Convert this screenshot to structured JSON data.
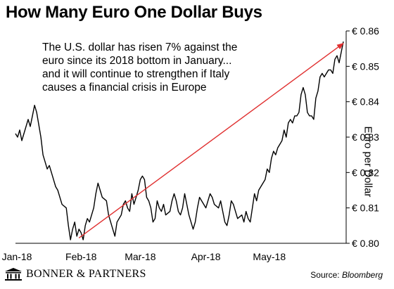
{
  "title": "How Many Euro One Dollar Buys",
  "annotation": [
    "The U.S. dollar has risen 7% against the",
    "euro since its 2018 bottom in January...",
    "and it will continue to strengthen if Italy",
    "causes a financial crisis in Europe"
  ],
  "footer": {
    "brand": "BONNER & PARTNERS",
    "source_label": "Source:",
    "source_name": "Bloomberg"
  },
  "colors": {
    "line": "#000000",
    "arrow": "#e03030",
    "axis": "#000000"
  },
  "chart_data": {
    "type": "line",
    "title": "How Many Euro One Dollar Buys",
    "ylabel": "Euro per Dollar",
    "xlabel": "",
    "ylim": [
      0.8,
      0.86
    ],
    "xlim": [
      0,
      155
    ],
    "grid": false,
    "y_ticks": [
      0.8,
      0.81,
      0.82,
      0.83,
      0.84,
      0.85,
      0.86
    ],
    "y_tick_labels": [
      "€ 0.80",
      "€ 0.81",
      "€ 0.82",
      "€ 0.83",
      "€ 0.84",
      "€ 0.85",
      "€ 0.86"
    ],
    "x_ticks": [
      {
        "label": "Jan-18",
        "x": 0
      },
      {
        "label": "Feb-18",
        "x": 31
      },
      {
        "label": "Mar-18",
        "x": 59
      },
      {
        "label": "Apr-18",
        "x": 90
      },
      {
        "label": "May-18",
        "x": 120
      }
    ],
    "series": [
      {
        "values": [
          [
            0,
            0.831
          ],
          [
            1,
            0.83
          ],
          [
            2,
            0.832
          ],
          [
            3,
            0.829
          ],
          [
            4,
            0.831
          ],
          [
            5,
            0.833
          ],
          [
            6,
            0.835
          ],
          [
            7,
            0.833
          ],
          [
            8,
            0.836
          ],
          [
            9,
            0.839
          ],
          [
            10,
            0.837
          ],
          [
            12,
            0.83
          ],
          [
            13,
            0.825
          ],
          [
            14,
            0.823
          ],
          [
            15,
            0.821
          ],
          [
            16,
            0.822
          ],
          [
            17,
            0.82
          ],
          [
            18,
            0.818
          ],
          [
            19,
            0.816
          ],
          [
            20,
            0.815
          ],
          [
            21,
            0.813
          ],
          [
            22,
            0.811
          ],
          [
            24,
            0.81
          ],
          [
            25,
            0.805
          ],
          [
            26,
            0.801
          ],
          [
            27,
            0.804
          ],
          [
            28,
            0.806
          ],
          [
            29,
            0.802
          ],
          [
            30,
            0.804
          ],
          [
            31,
            0.803
          ],
          [
            32,
            0.801
          ],
          [
            33,
            0.805
          ],
          [
            34,
            0.807
          ],
          [
            35,
            0.806
          ],
          [
            37,
            0.81
          ],
          [
            38,
            0.814
          ],
          [
            39,
            0.817
          ],
          [
            40,
            0.815
          ],
          [
            41,
            0.813
          ],
          [
            43,
            0.812
          ],
          [
            44,
            0.808
          ],
          [
            45,
            0.806
          ],
          [
            46,
            0.804
          ],
          [
            47,
            0.802
          ],
          [
            48,
            0.806
          ],
          [
            50,
            0.808
          ],
          [
            51,
            0.811
          ],
          [
            52,
            0.812
          ],
          [
            53,
            0.81
          ],
          [
            54,
            0.809
          ],
          [
            55,
            0.814
          ],
          [
            56,
            0.811
          ],
          [
            57,
            0.813
          ],
          [
            58,
            0.815
          ],
          [
            59,
            0.818
          ],
          [
            60,
            0.819
          ],
          [
            61,
            0.818
          ],
          [
            62,
            0.813
          ],
          [
            63,
            0.812
          ],
          [
            64,
            0.81
          ],
          [
            65,
            0.806
          ],
          [
            66,
            0.807
          ],
          [
            67,
            0.812
          ],
          [
            68,
            0.81
          ],
          [
            69,
            0.809
          ],
          [
            70,
            0.811
          ],
          [
            71,
            0.808
          ],
          [
            73,
            0.809
          ],
          [
            74,
            0.812
          ],
          [
            75,
            0.814
          ],
          [
            76,
            0.812
          ],
          [
            77,
            0.809
          ],
          [
            78,
            0.808
          ],
          [
            79,
            0.81
          ],
          [
            80,
            0.814
          ],
          [
            81,
            0.811
          ],
          [
            82,
            0.808
          ],
          [
            83,
            0.806
          ],
          [
            84,
            0.804
          ],
          [
            85,
            0.806
          ],
          [
            86,
            0.81
          ],
          [
            87,
            0.813
          ],
          [
            88,
            0.812
          ],
          [
            89,
            0.811
          ],
          [
            90,
            0.81
          ],
          [
            91,
            0.812
          ],
          [
            92,
            0.814
          ],
          [
            93,
            0.813
          ],
          [
            94,
            0.811
          ],
          [
            96,
            0.81
          ],
          [
            97,
            0.812
          ],
          [
            98,
            0.809
          ],
          [
            99,
            0.806
          ],
          [
            100,
            0.805
          ],
          [
            101,
            0.808
          ],
          [
            102,
            0.812
          ],
          [
            103,
            0.811
          ],
          [
            104,
            0.809
          ],
          [
            105,
            0.807
          ],
          [
            107,
            0.808
          ],
          [
            108,
            0.806
          ],
          [
            109,
            0.809
          ],
          [
            110,
            0.807
          ],
          [
            111,
            0.806
          ],
          [
            112,
            0.81
          ],
          [
            113,
            0.814
          ],
          [
            114,
            0.812
          ],
          [
            115,
            0.815
          ],
          [
            116,
            0.816
          ],
          [
            117,
            0.817
          ],
          [
            118,
            0.818
          ],
          [
            119,
            0.821
          ],
          [
            120,
            0.82
          ],
          [
            121,
            0.824
          ],
          [
            122,
            0.826
          ],
          [
            123,
            0.825
          ],
          [
            124,
            0.827
          ],
          [
            125,
            0.828
          ],
          [
            126,
            0.829
          ],
          [
            127,
            0.832
          ],
          [
            128,
            0.83
          ],
          [
            129,
            0.834
          ],
          [
            130,
            0.835
          ],
          [
            131,
            0.834
          ],
          [
            132,
            0.836
          ],
          [
            133,
            0.836
          ],
          [
            134,
            0.837
          ],
          [
            135,
            0.842
          ],
          [
            136,
            0.844
          ],
          [
            137,
            0.842
          ],
          [
            138,
            0.837
          ],
          [
            139,
            0.836
          ],
          [
            140,
            0.836
          ],
          [
            141,
            0.835
          ],
          [
            142,
            0.841
          ],
          [
            143,
            0.843
          ],
          [
            144,
            0.847
          ],
          [
            145,
            0.848
          ],
          [
            146,
            0.847
          ],
          [
            147,
            0.848
          ],
          [
            148,
            0.849
          ],
          [
            149,
            0.849
          ],
          [
            150,
            0.848
          ],
          [
            151,
            0.852
          ],
          [
            152,
            0.853
          ],
          [
            153,
            0.851
          ],
          [
            154,
            0.854
          ],
          [
            155,
            0.857
          ]
        ]
      }
    ],
    "trend_arrow": {
      "from": [
        30,
        0.8015
      ],
      "to": [
        155,
        0.8565
      ]
    }
  }
}
